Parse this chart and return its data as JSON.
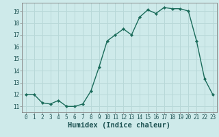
{
  "x": [
    0,
    1,
    2,
    3,
    4,
    5,
    6,
    7,
    8,
    9,
    10,
    11,
    12,
    13,
    14,
    15,
    16,
    17,
    18,
    19,
    20,
    21,
    22,
    23
  ],
  "y": [
    12,
    12,
    11.3,
    11.2,
    11.5,
    11.0,
    11.0,
    11.2,
    12.3,
    14.3,
    16.5,
    17.0,
    17.5,
    17.0,
    18.5,
    19.1,
    18.8,
    19.3,
    19.2,
    19.2,
    19.0,
    16.5,
    13.3,
    12.0
  ],
  "line_color": "#1a6b5a",
  "marker": "D",
  "markersize": 2.2,
  "linewidth": 1.0,
  "bg_color": "#ceeaea",
  "grid_color": "#b8d8d8",
  "xlabel": "Humidex (Indice chaleur)",
  "ylabel": "",
  "xlim": [
    -0.5,
    23.5
  ],
  "ylim": [
    10.5,
    19.7
  ],
  "yticks": [
    11,
    12,
    13,
    14,
    15,
    16,
    17,
    18,
    19
  ],
  "xticks": [
    0,
    1,
    2,
    3,
    4,
    5,
    6,
    7,
    8,
    9,
    10,
    11,
    12,
    13,
    14,
    15,
    16,
    17,
    18,
    19,
    20,
    21,
    22,
    23
  ],
  "tick_fontsize": 5.5,
  "xlabel_fontsize": 7.5,
  "tick_color": "#1a5050",
  "spine_color": "#888888"
}
